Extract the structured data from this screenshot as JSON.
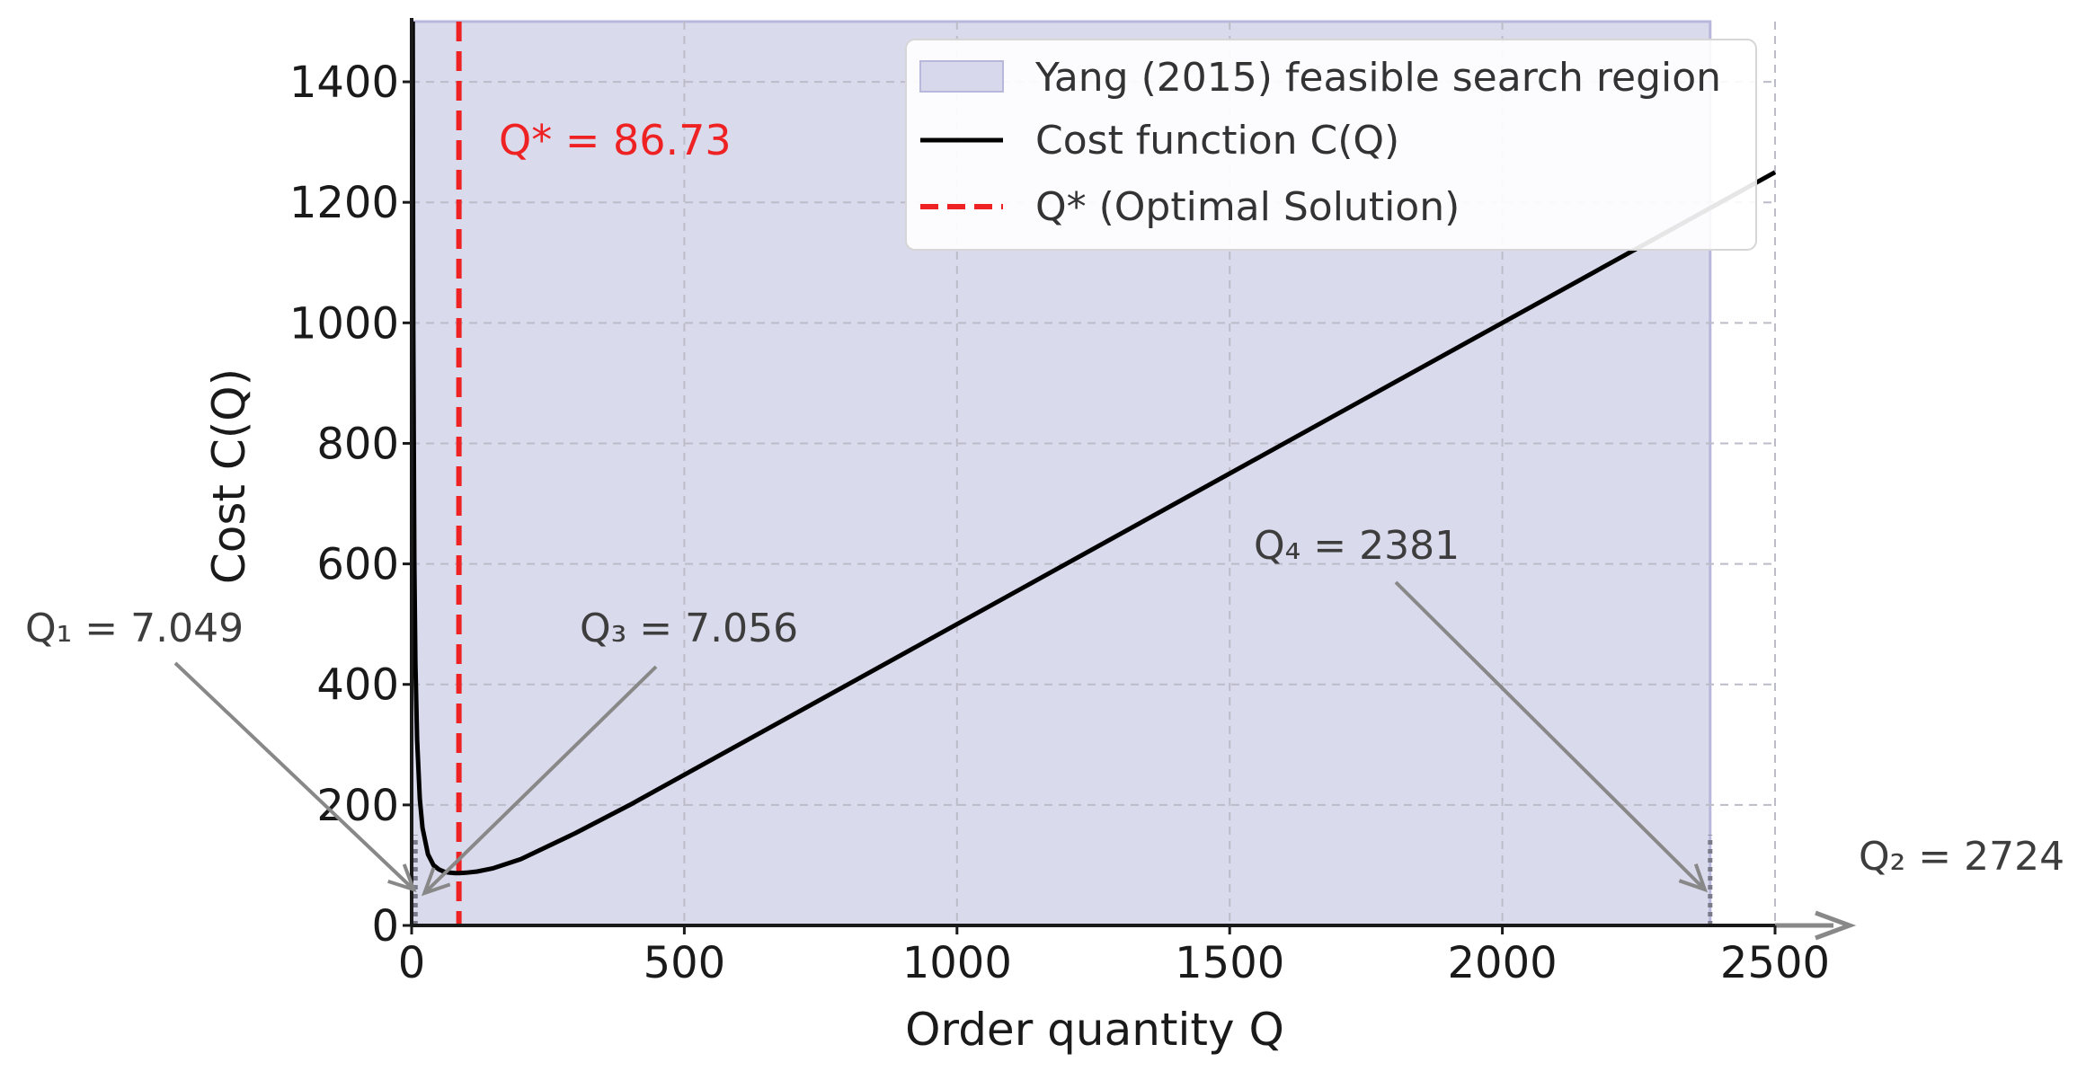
{
  "chart_data": {
    "type": "line",
    "title": "",
    "xlabel": "Order quantity Q",
    "ylabel": "Cost C(Q)",
    "xlim": [
      0,
      2500
    ],
    "ylim": [
      0,
      1500
    ],
    "x_ticks": [
      "0",
      "500",
      "1000",
      "1500",
      "2000",
      "2500"
    ],
    "y_ticks": [
      "0",
      "200",
      "400",
      "600",
      "800",
      "1000",
      "1200",
      "1400"
    ],
    "grid": true,
    "legend_position": "top-right",
    "legend": [
      {
        "label": "Yang (2015) feasible search region",
        "kind": "patch",
        "color": "#d8d8ec"
      },
      {
        "label": "Cost function C(Q)",
        "kind": "line",
        "color": "#000000"
      },
      {
        "label": "Q* (Optimal Solution)",
        "kind": "dashed-line",
        "color": "#ee2222"
      }
    ],
    "region": {
      "name": "Yang (2015) feasible search region",
      "x_range": [
        0,
        2381
      ],
      "color": "#d8d8ec"
    },
    "series": [
      {
        "name": "Cost function C(Q)",
        "x": [
          2,
          3,
          5,
          7,
          10,
          15,
          20,
          30,
          40,
          50,
          60,
          70,
          80,
          86.73,
          100,
          120,
          150,
          200,
          300,
          400,
          500,
          700,
          1000,
          1500,
          2000,
          2500
        ],
        "y": [
          1500,
          1001,
          604,
          434,
          308,
          210,
          162,
          118,
          100,
          93,
          89,
          87.5,
          87,
          86.73,
          87.5,
          89.5,
          95,
          110,
          153,
          200,
          250,
          350,
          500,
          750,
          1000,
          1250
        ]
      }
    ],
    "optimal": {
      "label": "Q* = 86.73",
      "x": 86.73,
      "color": "#ee2222"
    },
    "annotations": [
      {
        "label": "Q₁ = 7.049",
        "x": 7.049
      },
      {
        "label": "Q₃ = 7.056",
        "x": 7.056
      },
      {
        "label": "Q₄ = 2381",
        "x": 2381
      },
      {
        "label": "Q₂ = 2724",
        "x": 2724
      }
    ]
  }
}
